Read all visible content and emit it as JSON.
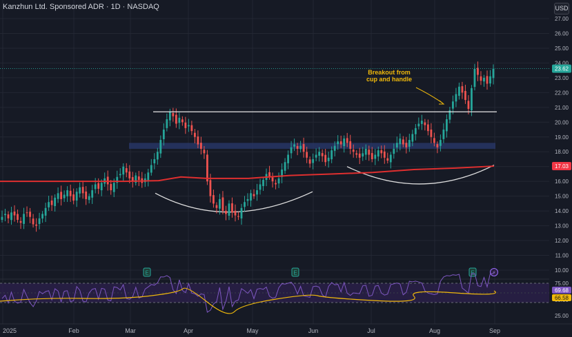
{
  "chart_data": {
    "type": "candlestick",
    "title": "Kanzhun Ltd. Sponsored ADR · 1D · NASDAQ",
    "currency": "USD",
    "price_axis": {
      "min": 10,
      "max": 28,
      "ticks": [
        "27.00",
        "26.00",
        "25.00",
        "24.00",
        "23.00",
        "22.00",
        "21.00",
        "20.00",
        "19.00",
        "18.00",
        "17.00",
        "16.00",
        "15.00",
        "14.00",
        "13.00",
        "12.00",
        "11.00",
        "10.00"
      ]
    },
    "time_axis": [
      "2025",
      "Feb",
      "Mar",
      "Apr",
      "May",
      "Jun",
      "Jul",
      "Aug",
      "Sep"
    ],
    "last_price": {
      "value": "23.62",
      "color": "#26a69a"
    },
    "ma_label": {
      "value": "17.03",
      "color": "#f23645"
    },
    "resistance_level": 20.7,
    "support_zone": [
      18.2,
      18.6
    ],
    "annotation": "Breakout from\ncup and handle",
    "earnings_marker": "E",
    "dividend_marker": "⚡",
    "rsi_axis": {
      "ticks": [
        "75.00",
        "50.00",
        "25.00"
      ],
      "rsi_label": "69.68",
      "ma_label": "66.58"
    },
    "closes": [
      13.6,
      13.8,
      13.5,
      13.9,
      13.7,
      13.4,
      13.2,
      13.8,
      13.9,
      13.6,
      13.1,
      13.0,
      13.5,
      13.8,
      14.2,
      14.6,
      14.4,
      14.9,
      15.2,
      14.8,
      15.1,
      15.4,
      15.0,
      14.7,
      15.3,
      15.6,
      15.2,
      14.8,
      15.0,
      15.4,
      15.8,
      15.5,
      15.9,
      16.2,
      15.8,
      15.4,
      15.9,
      16.3,
      16.5,
      17.0,
      16.6,
      16.2,
      16.0,
      16.4,
      16.1,
      15.9,
      16.2,
      16.6,
      17.1,
      17.5,
      18.0,
      18.8,
      19.5,
      20.2,
      20.7,
      20.4,
      19.9,
      20.3,
      20.0,
      19.6,
      19.8,
      19.4,
      19.0,
      18.5,
      18.2,
      17.9,
      16.0,
      15.0,
      14.5,
      14.2,
      14.8,
      14.0,
      13.8,
      14.5,
      13.9,
      13.7,
      13.6,
      14.2,
      14.6,
      14.8,
      15.2,
      15.0,
      15.4,
      15.8,
      16.1,
      16.5,
      16.3,
      16.0,
      15.8,
      16.2,
      16.8,
      17.3,
      17.8,
      18.3,
      18.5,
      18.2,
      18.4,
      18.0,
      17.6,
      17.2,
      17.5,
      17.8,
      18.0,
      17.7,
      17.3,
      17.6,
      18.1,
      18.4,
      18.7,
      18.5,
      18.9,
      18.6,
      18.2,
      18.0,
      17.8,
      17.6,
      17.9,
      18.2,
      17.8,
      17.5,
      17.8,
      18.1,
      17.9,
      17.6,
      17.4,
      17.8,
      18.2,
      18.6,
      18.9,
      18.5,
      18.3,
      18.8,
      19.2,
      19.6,
      19.9,
      20.1,
      19.8,
      19.4,
      19.0,
      18.6,
      18.3,
      18.8,
      19.5,
      20.2,
      20.8,
      21.4,
      21.9,
      22.4,
      22.0,
      21.5,
      20.9,
      22.3,
      23.6,
      23.2,
      22.8,
      23.0,
      22.6,
      23.1,
      23.6
    ]
  }
}
